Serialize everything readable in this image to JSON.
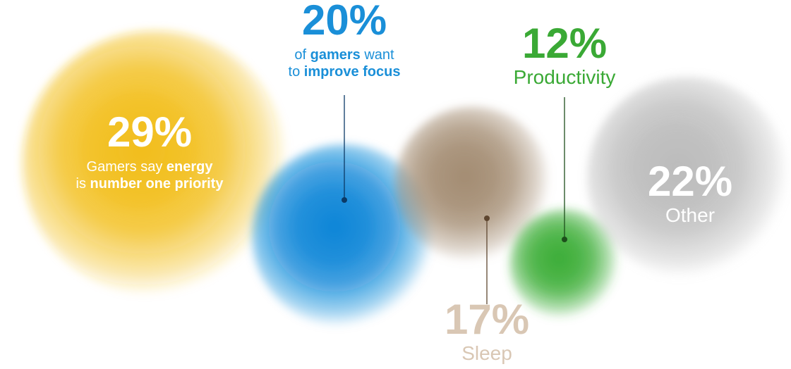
{
  "chart_data": {
    "type": "bubble",
    "values": [
      29,
      20,
      17,
      12,
      22
    ],
    "value_labels": [
      "29%",
      "20%",
      "17%",
      "12%",
      "22%"
    ],
    "colors": [
      "#f2be1a",
      "#0a86d8",
      "#a48d73",
      "#3dae38",
      "#bcbcbc"
    ],
    "label_colors": [
      "#ffffff",
      "#1a8fd8",
      "#d9c7b4",
      "#3aa935",
      "#ffffff"
    ],
    "descriptions": [
      [
        [
          {
            "text": "Gamers say ",
            "bold": false
          },
          {
            "text": "energy",
            "bold": true
          }
        ],
        [
          {
            "text": "is ",
            "bold": false
          },
          {
            "text": "number one priority",
            "bold": true
          }
        ]
      ],
      [
        [
          {
            "text": "of ",
            "bold": false
          },
          {
            "text": "gamers",
            "bold": true
          },
          {
            "text": " want",
            "bold": false
          }
        ],
        [
          {
            "text": "to ",
            "bold": false
          },
          {
            "text": "improve focus",
            "bold": true
          }
        ]
      ],
      [
        [
          {
            "text": "Sleep",
            "bold": false
          }
        ]
      ],
      [
        [
          {
            "text": "Productivity",
            "bold": false
          }
        ]
      ],
      [
        [
          {
            "text": "Other",
            "bold": false
          }
        ]
      ]
    ]
  }
}
